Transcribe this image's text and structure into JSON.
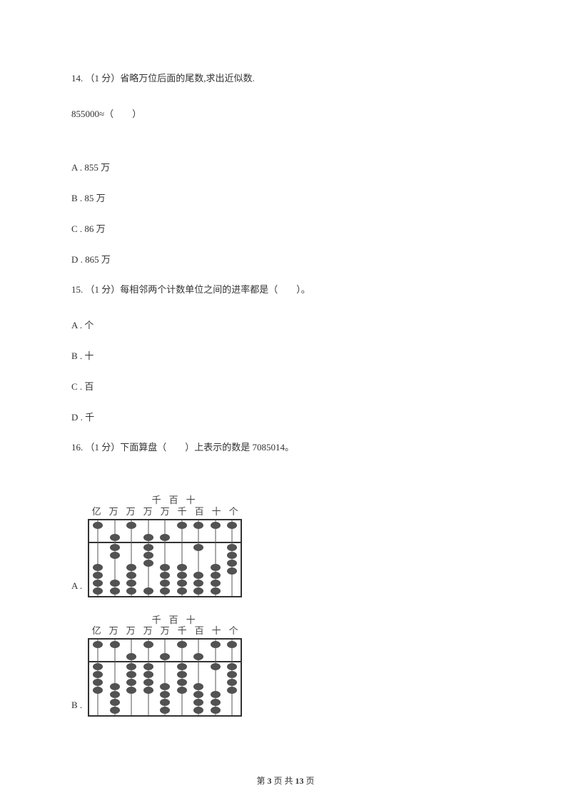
{
  "questions": {
    "q14": {
      "header": "14. （1 分）省略万位后面的尾数,求出近似数.",
      "sub": "855000≈（　　）",
      "options": {
        "a": "A . 855 万",
        "b": "B . 85 万",
        "c": "C . 86 万",
        "d": "D . 865 万"
      }
    },
    "q15": {
      "header": "15. （1 分）每相邻两个计数单位之间的进率都是（　　）。",
      "options": {
        "a": "A . 个",
        "b": "B . 十",
        "c": "C . 百",
        "d": "D . 千"
      }
    },
    "q16": {
      "header": "16. （1 分）下面算盘（　　）上表示的数是 7085014。",
      "options": {
        "a": "A .",
        "b": "B ."
      }
    }
  },
  "abacus": {
    "top_labels": [
      "千",
      "百",
      "十"
    ],
    "bottom_labels": [
      "亿",
      "万",
      "万",
      "万",
      "万",
      "千",
      "百",
      "十",
      "个"
    ],
    "colors": {
      "frame": "#333333",
      "bead": "#525252",
      "rod": "#555555"
    },
    "a": {
      "rods": [
        {
          "top_down": 0,
          "bottom_up": 0
        },
        {
          "top_down": 1,
          "bottom_up": 2
        },
        {
          "top_down": 0,
          "bottom_up": 0
        },
        {
          "top_down": 1,
          "bottom_up": 3
        },
        {
          "top_down": 1,
          "bottom_up": 0
        },
        {
          "top_down": 0,
          "bottom_up": 0
        },
        {
          "top_down": 0,
          "bottom_up": 1
        },
        {
          "top_down": 0,
          "bottom_up": 0
        },
        {
          "top_down": 0,
          "bottom_up": 4
        }
      ]
    },
    "b": {
      "rods": [
        {
          "top_down": 0,
          "bottom_up": 4
        },
        {
          "top_down": 0,
          "bottom_up": 0
        },
        {
          "top_down": 1,
          "bottom_up": 4
        },
        {
          "top_down": 0,
          "bottom_up": 4
        },
        {
          "top_down": 1,
          "bottom_up": 0
        },
        {
          "top_down": 0,
          "bottom_up": 4
        },
        {
          "top_down": 1,
          "bottom_up": 0
        },
        {
          "top_down": 0,
          "bottom_up": 1
        },
        {
          "top_down": 0,
          "bottom_up": 4
        }
      ]
    }
  },
  "footer": {
    "page_prefix": "第",
    "page_current": "3",
    "page_mid": "页 共",
    "page_total": "13",
    "page_suffix": "页"
  }
}
